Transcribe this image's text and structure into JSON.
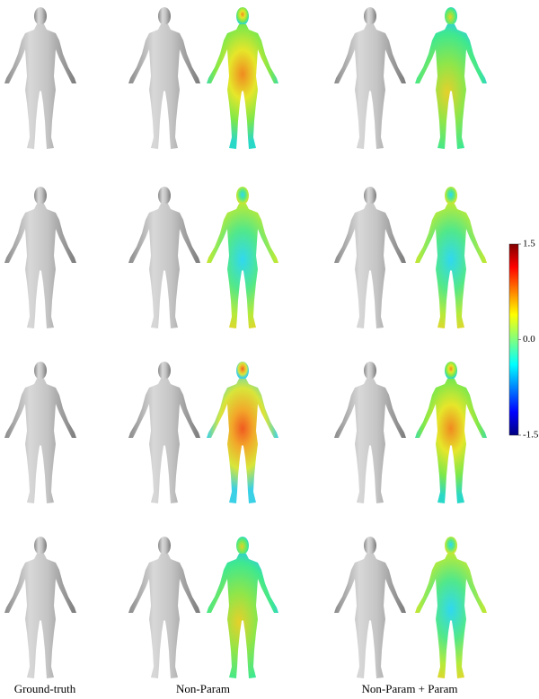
{
  "figure": {
    "columns": [
      "Ground-truth",
      "Non-Param",
      "Non-Param + Param"
    ],
    "colorbar": {
      "lim": [
        -1.5,
        1.5
      ],
      "ticks": [
        1.5,
        {
          "value": 0,
          "label": "0.0"
        },
        -1.5
      ]
    }
  }
}
